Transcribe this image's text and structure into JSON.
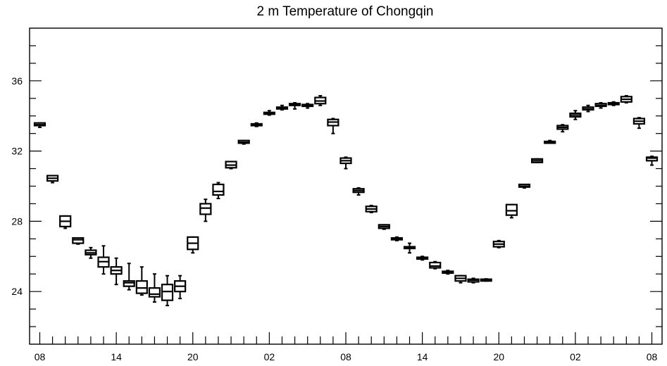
{
  "chart_data": {
    "type": "box",
    "title": "2 m Temperature of Chongqin",
    "xlabel": "",
    "ylabel": "",
    "ylim": [
      21,
      39
    ],
    "yticks_major": [
      24,
      28,
      32,
      36
    ],
    "yticks_minor_step": 1,
    "xlim": [
      -0.8,
      48.8
    ],
    "xticks_major": [
      {
        "pos": 0,
        "label": "08"
      },
      {
        "pos": 6,
        "label": "14"
      },
      {
        "pos": 12,
        "label": "20"
      },
      {
        "pos": 18,
        "label": "02"
      },
      {
        "pos": 24,
        "label": "08"
      },
      {
        "pos": 30,
        "label": "14"
      },
      {
        "pos": 36,
        "label": "20"
      },
      {
        "pos": 42,
        "label": "02"
      },
      {
        "pos": 48,
        "label": "08"
      }
    ],
    "grid": false,
    "boxes": [
      {
        "x": 0,
        "min": 33.35,
        "q1": 33.45,
        "median": 33.5,
        "q3": 33.6,
        "max": 33.6
      },
      {
        "x": 1,
        "min": 30.2,
        "q1": 30.3,
        "median": 30.45,
        "q3": 30.6,
        "max": 30.6
      },
      {
        "x": 2,
        "min": 27.6,
        "q1": 27.7,
        "median": 28.0,
        "q3": 28.3,
        "max": 28.3
      },
      {
        "x": 3,
        "min": 26.7,
        "q1": 26.75,
        "median": 26.95,
        "q3": 27.05,
        "max": 27.05
      },
      {
        "x": 4,
        "min": 25.9,
        "q1": 26.1,
        "median": 26.2,
        "q3": 26.35,
        "max": 26.5
      },
      {
        "x": 5,
        "min": 25.0,
        "q1": 25.4,
        "median": 25.7,
        "q3": 25.95,
        "max": 26.6
      },
      {
        "x": 6,
        "min": 24.4,
        "q1": 25.0,
        "median": 25.2,
        "q3": 25.4,
        "max": 25.9
      },
      {
        "x": 7,
        "min": 24.1,
        "q1": 24.3,
        "median": 24.5,
        "q3": 24.6,
        "max": 25.6
      },
      {
        "x": 8,
        "min": 23.8,
        "q1": 23.9,
        "median": 24.2,
        "q3": 24.6,
        "max": 25.4
      },
      {
        "x": 9,
        "min": 23.4,
        "q1": 23.7,
        "median": 23.85,
        "q3": 24.2,
        "max": 25.0
      },
      {
        "x": 10,
        "min": 23.2,
        "q1": 23.5,
        "median": 24.0,
        "q3": 24.4,
        "max": 24.9
      },
      {
        "x": 11,
        "min": 23.6,
        "q1": 24.0,
        "median": 24.3,
        "q3": 24.6,
        "max": 24.9
      },
      {
        "x": 12,
        "min": 26.2,
        "q1": 26.4,
        "median": 26.75,
        "q3": 27.1,
        "max": 27.1
      },
      {
        "x": 13,
        "min": 28.0,
        "q1": 28.4,
        "median": 28.75,
        "q3": 29.0,
        "max": 29.25
      },
      {
        "x": 14,
        "min": 29.3,
        "q1": 29.5,
        "median": 29.7,
        "q3": 30.1,
        "max": 30.2
      },
      {
        "x": 15,
        "min": 31.0,
        "q1": 31.05,
        "median": 31.2,
        "q3": 31.4,
        "max": 31.4
      },
      {
        "x": 16,
        "min": 32.4,
        "q1": 32.45,
        "median": 32.5,
        "q3": 32.6,
        "max": 32.6
      },
      {
        "x": 17,
        "min": 33.4,
        "q1": 33.45,
        "median": 33.5,
        "q3": 33.55,
        "max": 33.6
      },
      {
        "x": 18,
        "min": 34.05,
        "q1": 34.1,
        "median": 34.15,
        "q3": 34.2,
        "max": 34.3
      },
      {
        "x": 19,
        "min": 34.35,
        "q1": 34.4,
        "median": 34.45,
        "q3": 34.5,
        "max": 34.6
      },
      {
        "x": 20,
        "min": 34.4,
        "q1": 34.6,
        "median": 34.65,
        "q3": 34.7,
        "max": 34.75
      },
      {
        "x": 21,
        "min": 34.45,
        "q1": 34.55,
        "median": 34.6,
        "q3": 34.65,
        "max": 34.7
      },
      {
        "x": 22,
        "min": 34.6,
        "q1": 34.7,
        "median": 34.85,
        "q3": 35.05,
        "max": 35.15
      },
      {
        "x": 23,
        "min": 33.0,
        "q1": 33.45,
        "median": 33.65,
        "q3": 33.8,
        "max": 33.85
      },
      {
        "x": 24,
        "min": 31.0,
        "q1": 31.3,
        "median": 31.45,
        "q3": 31.6,
        "max": 31.65
      },
      {
        "x": 25,
        "min": 29.5,
        "q1": 29.65,
        "median": 29.75,
        "q3": 29.85,
        "max": 29.9
      },
      {
        "x": 26,
        "min": 28.5,
        "q1": 28.55,
        "median": 28.7,
        "q3": 28.85,
        "max": 28.9
      },
      {
        "x": 27,
        "min": 27.55,
        "q1": 27.6,
        "median": 27.7,
        "q3": 27.8,
        "max": 27.8
      },
      {
        "x": 28,
        "min": 26.9,
        "q1": 26.95,
        "median": 27.0,
        "q3": 27.05,
        "max": 27.1
      },
      {
        "x": 29,
        "min": 26.2,
        "q1": 26.45,
        "median": 26.5,
        "q3": 26.55,
        "max": 26.75
      },
      {
        "x": 30,
        "min": 25.8,
        "q1": 25.85,
        "median": 25.9,
        "q3": 25.95,
        "max": 26.0
      },
      {
        "x": 31,
        "min": 25.3,
        "q1": 25.35,
        "median": 25.45,
        "q3": 25.65,
        "max": 25.7
      },
      {
        "x": 32,
        "min": 25.0,
        "q1": 25.05,
        "median": 25.1,
        "q3": 25.15,
        "max": 25.2
      },
      {
        "x": 33,
        "min": 24.5,
        "q1": 24.6,
        "median": 24.75,
        "q3": 24.9,
        "max": 24.9
      },
      {
        "x": 34,
        "min": 24.5,
        "q1": 24.55,
        "median": 24.65,
        "q3": 24.7,
        "max": 24.75
      },
      {
        "x": 35,
        "min": 24.6,
        "q1": 24.62,
        "median": 24.65,
        "q3": 24.7,
        "max": 24.72
      },
      {
        "x": 36,
        "min": 26.5,
        "q1": 26.55,
        "median": 26.7,
        "q3": 26.85,
        "max": 26.9
      },
      {
        "x": 37,
        "min": 28.2,
        "q1": 28.35,
        "median": 28.6,
        "q3": 28.95,
        "max": 28.95
      },
      {
        "x": 38,
        "min": 29.9,
        "q1": 29.95,
        "median": 30.0,
        "q3": 30.1,
        "max": 30.1
      },
      {
        "x": 39,
        "min": 31.35,
        "q1": 31.35,
        "median": 31.45,
        "q3": 31.55,
        "max": 31.55
      },
      {
        "x": 40,
        "min": 32.45,
        "q1": 32.5,
        "median": 32.52,
        "q3": 32.55,
        "max": 32.6
      },
      {
        "x": 41,
        "min": 33.1,
        "q1": 33.25,
        "median": 33.35,
        "q3": 33.45,
        "max": 33.5
      },
      {
        "x": 42,
        "min": 33.8,
        "q1": 33.95,
        "median": 34.05,
        "q3": 34.15,
        "max": 34.3
      },
      {
        "x": 43,
        "min": 34.25,
        "q1": 34.35,
        "median": 34.4,
        "q3": 34.5,
        "max": 34.6
      },
      {
        "x": 44,
        "min": 34.45,
        "q1": 34.55,
        "median": 34.6,
        "q3": 34.7,
        "max": 34.75
      },
      {
        "x": 45,
        "min": 34.6,
        "q1": 34.65,
        "median": 34.7,
        "q3": 34.75,
        "max": 34.8
      },
      {
        "x": 46,
        "min": 34.75,
        "q1": 34.8,
        "median": 34.95,
        "q3": 35.1,
        "max": 35.15
      },
      {
        "x": 47,
        "min": 33.3,
        "q1": 33.55,
        "median": 33.7,
        "q3": 33.85,
        "max": 33.9
      },
      {
        "x": 48,
        "min": 31.2,
        "q1": 31.45,
        "median": 31.6,
        "q3": 31.65,
        "max": 31.7
      }
    ]
  }
}
